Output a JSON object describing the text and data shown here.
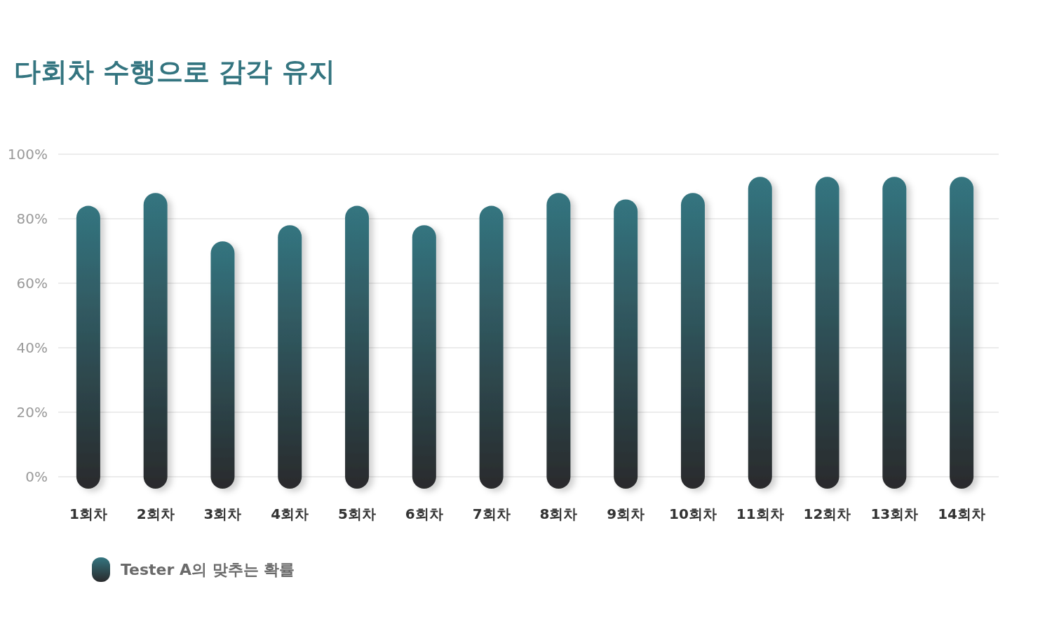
{
  "chart_data": {
    "type": "bar",
    "title": "다회차 수행으로 감각 유지",
    "categories": [
      "1회차",
      "2회차",
      "3회차",
      "4회차",
      "5회차",
      "6회차",
      "7회차",
      "8회차",
      "9회차",
      "10회차",
      "11회차",
      "12회차",
      "13회차",
      "14회차"
    ],
    "series": [
      {
        "name": "Tester A의 맞추는 확률",
        "color": "#347580",
        "values": [
          84,
          88,
          73,
          78,
          84,
          78,
          84,
          88,
          86,
          88,
          93,
          93,
          93,
          93
        ]
      }
    ],
    "ylim": [
      0,
      100
    ],
    "yticks": [
      {
        "value": 0,
        "label": "0%"
      },
      {
        "value": 20,
        "label": "20%"
      },
      {
        "value": 40,
        "label": "40%"
      },
      {
        "value": 60,
        "label": "60%"
      },
      {
        "value": 80,
        "label": "80%"
      },
      {
        "value": 100,
        "label": "100%"
      }
    ],
    "grid": "y",
    "legend": "bottom left"
  }
}
